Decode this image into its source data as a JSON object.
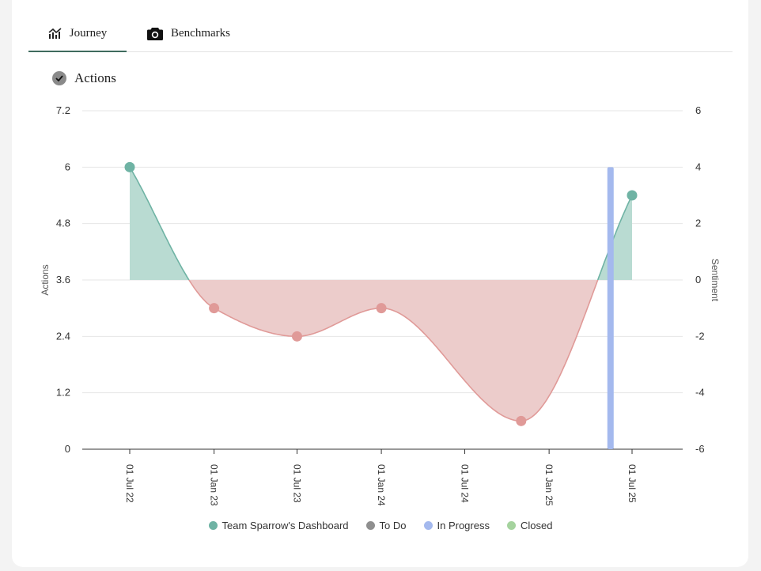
{
  "tabs": [
    {
      "label": "Journey",
      "icon": "chart-line-icon",
      "active": true
    },
    {
      "label": "Benchmarks",
      "icon": "camera-icon",
      "active": false
    }
  ],
  "section": {
    "title": "Actions",
    "icon": "check-circle-icon"
  },
  "legend": [
    {
      "label": "Team Sparrow's Dashboard",
      "color": "#6fb3a4"
    },
    {
      "label": "To Do",
      "color": "#8f8f8f"
    },
    {
      "label": "In Progress",
      "color": "#a4b9ee"
    },
    {
      "label": "Closed",
      "color": "#a5d39e"
    }
  ],
  "colors": {
    "positive_line": "#6fb3a4",
    "positive_fill": "#b9dbd2",
    "negative_line": "#e09a98",
    "negative_fill": "#eccccb",
    "in_progress": "#a4b9ee",
    "grid": "#e6e6e6",
    "axis": "#333333"
  },
  "chart_data": {
    "type": "line",
    "ylabel": "Actions",
    "y2label": "Sentiment",
    "ylim": [
      0,
      7.2
    ],
    "y_ticks": [
      "0",
      "1.2",
      "2.4",
      "3.6",
      "4.8",
      "6",
      "7.2"
    ],
    "y2lim": [
      -6,
      6
    ],
    "y2_ticks": [
      "-6",
      "-4",
      "-2",
      "0",
      "2",
      "4",
      "6"
    ],
    "x_ticks": [
      "01 Jul 22",
      "01 Jan 23",
      "01 Jul 23",
      "01 Jan 24",
      "01 Jul 24",
      "01 Jan 25",
      "01 Jul 25"
    ],
    "grid": true,
    "legend_position": "bottom",
    "series": [
      {
        "name": "Team Sparrow's Dashboard",
        "axis": "sentiment",
        "points": [
          {
            "x": "2022-07-01",
            "y": 4
          },
          {
            "x": "2023-01-01",
            "y": -1
          },
          {
            "x": "2023-07-01",
            "y": -2
          },
          {
            "x": "2024-01-01",
            "y": -1
          },
          {
            "x": "2024-11-01",
            "y": -5
          },
          {
            "x": "2025-07-01",
            "y": 3
          }
        ]
      },
      {
        "name": "In Progress",
        "axis": "actions",
        "type": "bar",
        "points": [
          {
            "x": "2025-05-15",
            "y": 6
          }
        ]
      }
    ]
  }
}
